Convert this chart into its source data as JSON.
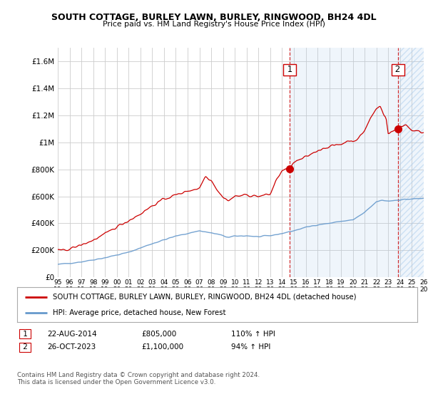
{
  "title": "SOUTH COTTAGE, BURLEY LAWN, BURLEY, RINGWOOD, BH24 4DL",
  "subtitle": "Price paid vs. HM Land Registry's House Price Index (HPI)",
  "legend_line1": "SOUTH COTTAGE, BURLEY LAWN, BURLEY, RINGWOOD, BH24 4DL (detached house)",
  "legend_line2": "HPI: Average price, detached house, New Forest",
  "annotation1_label": "1",
  "annotation1_date": "22-AUG-2014",
  "annotation1_price": "£805,000",
  "annotation1_hpi": "110% ↑ HPI",
  "annotation2_label": "2",
  "annotation2_date": "26-OCT-2023",
  "annotation2_price": "£1,100,000",
  "annotation2_hpi": "94% ↑ HPI",
  "footer": "Contains HM Land Registry data © Crown copyright and database right 2024.\nThis data is licensed under the Open Government Licence v3.0.",
  "sale1_x": 2014.64,
  "sale1_y": 805000,
  "sale2_x": 2023.82,
  "sale2_y": 1100000,
  "red_color": "#cc0000",
  "blue_color": "#6699cc",
  "vline_color": "#cc0000",
  "shade_color": "#ddeeff",
  "ylim_min": 0,
  "ylim_max": 1700000,
  "xlim_min": 1995,
  "xlim_max": 2026,
  "yticks": [
    0,
    200000,
    400000,
    600000,
    800000,
    1000000,
    1200000,
    1400000,
    1600000
  ],
  "ytick_labels": [
    "£0",
    "£200K",
    "£400K",
    "£600K",
    "£800K",
    "£1M",
    "£1.2M",
    "£1.4M",
    "£1.6M"
  ],
  "xticks": [
    1995,
    1996,
    1997,
    1998,
    1999,
    2000,
    2001,
    2002,
    2003,
    2004,
    2005,
    2006,
    2007,
    2008,
    2009,
    2010,
    2011,
    2012,
    2013,
    2014,
    2015,
    2016,
    2017,
    2018,
    2019,
    2020,
    2021,
    2022,
    2023,
    2024,
    2025,
    2026
  ],
  "background_color": "#ffffff",
  "grid_color": "#cccccc"
}
